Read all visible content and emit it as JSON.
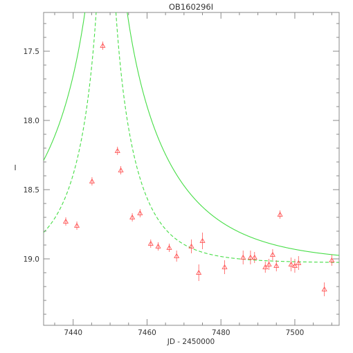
{
  "chart_data": {
    "type": "scatter",
    "title": "OB160296I",
    "xlabel": "JD - 2450000",
    "ylabel": "I",
    "xlim": [
      7432,
      7512
    ],
    "ylim": [
      19.48,
      17.22
    ],
    "y_inverted": true,
    "grid": false,
    "legend": "none",
    "x_ticks": [
      7440,
      7460,
      7480,
      7500
    ],
    "x_tick_labels": [
      "7440",
      "7460",
      "7480",
      "7500"
    ],
    "y_ticks": [
      17.5,
      18.0,
      18.5,
      19.0
    ],
    "y_tick_labels": [
      "17.5",
      "18.0",
      "18.5",
      "19.0"
    ],
    "colors": {
      "points": "#ff5555",
      "model": "#44dd44",
      "axes": "#888888"
    },
    "points": [
      {
        "x": 7438.0,
        "y": 18.73,
        "err": 0.03
      },
      {
        "x": 7441.0,
        "y": 18.76,
        "err": 0.03
      },
      {
        "x": 7445.1,
        "y": 18.44,
        "err": 0.03
      },
      {
        "x": 7448.0,
        "y": 17.46,
        "err": 0.03
      },
      {
        "x": 7452.0,
        "y": 18.22,
        "err": 0.03
      },
      {
        "x": 7452.9,
        "y": 18.36,
        "err": 0.03
      },
      {
        "x": 7456.0,
        "y": 18.7,
        "err": 0.03
      },
      {
        "x": 7458.1,
        "y": 18.67,
        "err": 0.03
      },
      {
        "x": 7461.0,
        "y": 18.89,
        "err": 0.03
      },
      {
        "x": 7463.0,
        "y": 18.91,
        "err": 0.03
      },
      {
        "x": 7466.0,
        "y": 18.92,
        "err": 0.03
      },
      {
        "x": 7468.0,
        "y": 18.98,
        "err": 0.04
      },
      {
        "x": 7472.0,
        "y": 18.91,
        "err": 0.05
      },
      {
        "x": 7474.0,
        "y": 19.1,
        "err": 0.06
      },
      {
        "x": 7475.0,
        "y": 18.87,
        "err": 0.06
      },
      {
        "x": 7481.0,
        "y": 19.06,
        "err": 0.05
      },
      {
        "x": 7486.0,
        "y": 18.99,
        "err": 0.05
      },
      {
        "x": 7488.0,
        "y": 18.99,
        "err": 0.05
      },
      {
        "x": 7489.1,
        "y": 18.99,
        "err": 0.04
      },
      {
        "x": 7492.0,
        "y": 19.06,
        "err": 0.04
      },
      {
        "x": 7493.0,
        "y": 19.04,
        "err": 0.04
      },
      {
        "x": 7494.0,
        "y": 18.97,
        "err": 0.04
      },
      {
        "x": 7495.0,
        "y": 19.05,
        "err": 0.04
      },
      {
        "x": 7496.0,
        "y": 18.68,
        "err": 0.03
      },
      {
        "x": 7499.0,
        "y": 19.04,
        "err": 0.05
      },
      {
        "x": 7500.0,
        "y": 19.05,
        "err": 0.05
      },
      {
        "x": 7501.0,
        "y": 19.03,
        "err": 0.05
      },
      {
        "x": 7508.0,
        "y": 19.22,
        "err": 0.05
      },
      {
        "x": 7510.0,
        "y": 19.01,
        "err": 0.04
      }
    ],
    "models": [
      {
        "style": "solid",
        "t0": 7448.9,
        "u0": 0.01,
        "tE": 30,
        "base": 19.03
      },
      {
        "style": "dashed",
        "t0": 7448.9,
        "u0": 0.008,
        "tE": 14,
        "base": 19.03
      }
    ]
  }
}
